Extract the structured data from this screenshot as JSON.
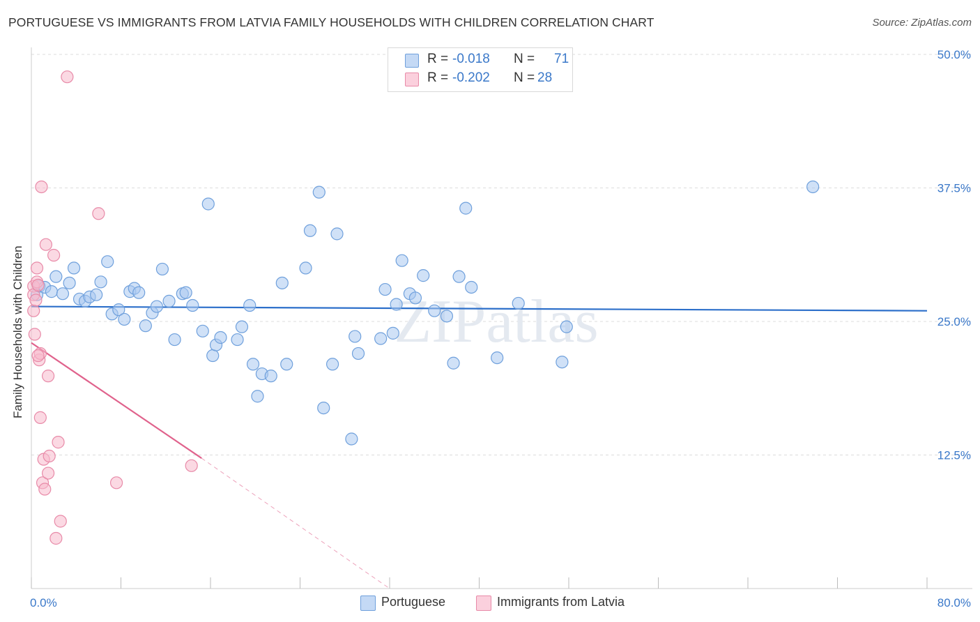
{
  "title": "PORTUGUESE VS IMMIGRANTS FROM LATVIA FAMILY HOUSEHOLDS WITH CHILDREN CORRELATION CHART",
  "source": "Source: ZipAtlas.com",
  "watermark": "ZIPatlas",
  "colors": {
    "blue_fill": "#a9c8f0",
    "blue_stroke": "#6fa0dc",
    "blue_line": "#2c6fca",
    "pink_fill": "#f7b9cc",
    "pink_stroke": "#e88aa8",
    "pink_line": "#e0628c",
    "axis_text": "#3a78c9",
    "grid": "#dcdcdc"
  },
  "legend_top": [
    {
      "r_label": "R =",
      "r_value": "-0.018",
      "n_label": "N =",
      "n_value": "71",
      "color": "#a9c8f0"
    },
    {
      "r_label": "R =",
      "r_value": "-0.202",
      "n_label": "N =",
      "n_value": "28",
      "color": "#f7b9cc"
    }
  ],
  "legend_bottom": [
    {
      "label": "Portuguese",
      "color": "#a9c8f0"
    },
    {
      "label": "Immigrants from Latvia",
      "color": "#f7b9cc"
    }
  ],
  "chart_data": {
    "type": "scatter",
    "title": "PORTUGUESE VS IMMIGRANTS FROM LATVIA FAMILY HOUSEHOLDS WITH CHILDREN CORRELATION CHART",
    "xlabel": "",
    "ylabel": "Family Households with Children",
    "xlim": [
      0,
      80
    ],
    "ylim": [
      0,
      50
    ],
    "x_tick_labels": [
      "0.0%",
      "80.0%"
    ],
    "y_ticks": [
      12.5,
      25.0,
      37.5,
      50.0
    ],
    "y_tick_labels": [
      "12.5%",
      "25.0%",
      "37.5%",
      "50.0%"
    ],
    "grid": true,
    "legend_position": "top-center",
    "series": [
      {
        "name": "Portuguese",
        "r": -0.018,
        "n": 71,
        "trend": {
          "x": [
            0,
            80
          ],
          "y": [
            26.4,
            26.0
          ]
        },
        "points": [
          [
            0.5,
            27.5
          ],
          [
            0.7,
            28.3
          ],
          [
            1.2,
            28.2
          ],
          [
            1.8,
            27.8
          ],
          [
            2.2,
            29.2
          ],
          [
            2.8,
            27.6
          ],
          [
            3.4,
            28.6
          ],
          [
            3.8,
            30.0
          ],
          [
            4.3,
            27.1
          ],
          [
            4.8,
            26.9
          ],
          [
            5.2,
            27.3
          ],
          [
            5.8,
            27.5
          ],
          [
            6.2,
            28.7
          ],
          [
            6.8,
            30.6
          ],
          [
            7.2,
            25.7
          ],
          [
            7.8,
            26.1
          ],
          [
            8.3,
            25.2
          ],
          [
            8.8,
            27.8
          ],
          [
            9.2,
            28.1
          ],
          [
            9.6,
            27.7
          ],
          [
            10.2,
            24.6
          ],
          [
            10.8,
            25.8
          ],
          [
            11.2,
            26.4
          ],
          [
            11.7,
            29.9
          ],
          [
            12.3,
            26.9
          ],
          [
            12.8,
            23.3
          ],
          [
            13.5,
            27.6
          ],
          [
            13.8,
            27.7
          ],
          [
            14.4,
            26.5
          ],
          [
            15.3,
            24.1
          ],
          [
            15.8,
            36.0
          ],
          [
            16.2,
            21.8
          ],
          [
            16.5,
            22.8
          ],
          [
            16.9,
            23.5
          ],
          [
            18.4,
            23.3
          ],
          [
            18.8,
            24.5
          ],
          [
            19.5,
            26.5
          ],
          [
            19.8,
            21.0
          ],
          [
            20.2,
            18.0
          ],
          [
            20.6,
            20.1
          ],
          [
            21.4,
            19.9
          ],
          [
            22.4,
            28.6
          ],
          [
            22.8,
            21.0
          ],
          [
            24.5,
            30.0
          ],
          [
            24.9,
            33.5
          ],
          [
            25.7,
            37.1
          ],
          [
            26.1,
            16.9
          ],
          [
            26.9,
            21.0
          ],
          [
            27.3,
            33.2
          ],
          [
            28.6,
            14.0
          ],
          [
            28.9,
            23.6
          ],
          [
            29.2,
            22.0
          ],
          [
            31.2,
            23.4
          ],
          [
            31.6,
            28.0
          ],
          [
            32.3,
            23.9
          ],
          [
            32.6,
            26.6
          ],
          [
            33.1,
            30.7
          ],
          [
            33.8,
            27.6
          ],
          [
            34.3,
            27.2
          ],
          [
            35.0,
            29.3
          ],
          [
            36.0,
            26.0
          ],
          [
            37.1,
            25.5
          ],
          [
            37.7,
            21.1
          ],
          [
            38.2,
            29.2
          ],
          [
            38.8,
            35.6
          ],
          [
            39.3,
            28.2
          ],
          [
            41.6,
            21.6
          ],
          [
            43.5,
            26.7
          ],
          [
            47.4,
            21.2
          ],
          [
            47.8,
            24.5
          ],
          [
            69.8,
            37.6
          ]
        ]
      },
      {
        "name": "Immigrants from Latvia",
        "r": -0.202,
        "n": 28,
        "trend": {
          "x": [
            0,
            15.2
          ],
          "y": [
            23.0,
            12.2
          ],
          "dashed_to": {
            "x": 32.0,
            "y": 0.0
          }
        },
        "points": [
          [
            0.2,
            28.3
          ],
          [
            0.2,
            27.5
          ],
          [
            0.2,
            26.0
          ],
          [
            0.3,
            23.8
          ],
          [
            0.5,
            30.0
          ],
          [
            0.5,
            28.7
          ],
          [
            0.6,
            28.4
          ],
          [
            0.7,
            21.4
          ],
          [
            0.8,
            22.0
          ],
          [
            0.8,
            16.0
          ],
          [
            0.9,
            37.6
          ],
          [
            1.0,
            9.9
          ],
          [
            1.1,
            12.1
          ],
          [
            1.2,
            9.3
          ],
          [
            1.3,
            32.2
          ],
          [
            1.5,
            19.9
          ],
          [
            1.5,
            10.8
          ],
          [
            1.6,
            12.4
          ],
          [
            2.0,
            31.2
          ],
          [
            2.2,
            4.7
          ],
          [
            2.4,
            13.7
          ],
          [
            2.6,
            6.3
          ],
          [
            3.2,
            47.9
          ],
          [
            6.0,
            35.1
          ],
          [
            7.6,
            9.9
          ],
          [
            14.3,
            11.5
          ],
          [
            0.6,
            21.8
          ],
          [
            0.4,
            27.0
          ]
        ]
      }
    ]
  }
}
